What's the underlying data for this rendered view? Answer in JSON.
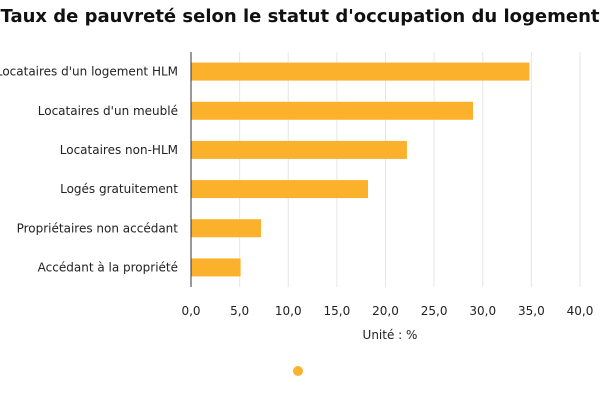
{
  "chart_data": {
    "type": "bar",
    "orientation": "horizontal",
    "title": "Taux de pauvreté selon le statut d'occupation du logement",
    "xlabel": "Unité : %",
    "ylabel": "",
    "categories": [
      "Locataires d'un logement HLM",
      "Locataires d'un meublé",
      "Locataires non-HLM",
      "Logés gratuitement",
      "Propriétaires non accédant",
      "Accédant à la propriété"
    ],
    "values": [
      34.8,
      29.0,
      22.2,
      18.2,
      7.2,
      5.1
    ],
    "xlim": [
      0,
      40
    ],
    "ticks": [
      0,
      5,
      10,
      15,
      20,
      25,
      30,
      35,
      40
    ],
    "tick_labels": [
      "0,0",
      "5,0",
      "10,0",
      "15,0",
      "20,0",
      "25,0",
      "30,0",
      "35,0",
      "40,0"
    ],
    "grid": true,
    "legend": "bottom-center",
    "bar_color": "#FBB12B"
  }
}
